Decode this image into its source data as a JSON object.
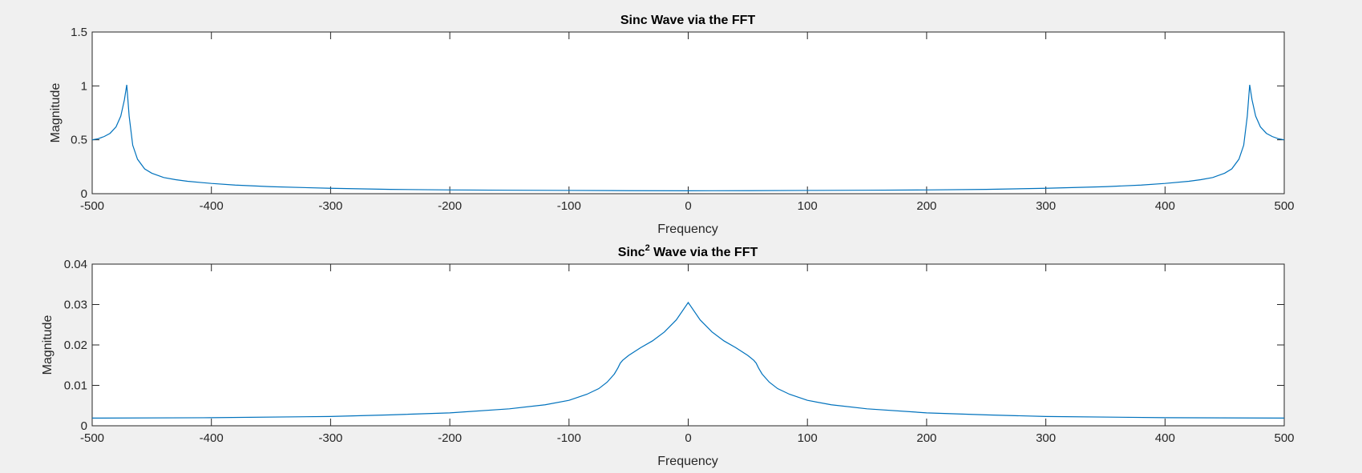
{
  "chart_data": [
    {
      "type": "line",
      "title": "Sinc Wave via the FFT",
      "xlabel": "Frequency",
      "ylabel": "Magnitude",
      "xlim": [
        -500,
        500
      ],
      "ylim": [
        0,
        1.5
      ],
      "xticks": [
        "-500",
        "-400",
        "-300",
        "-200",
        "-100",
        "0",
        "100",
        "200",
        "300",
        "400",
        "500"
      ],
      "yticks": [
        "0",
        "0.5",
        "1",
        "1.5"
      ],
      "grid": false,
      "line_color": "#0072bd",
      "series": [
        {
          "x": [
            -500,
            -495,
            -490,
            -485,
            -480,
            -476,
            -473,
            -471,
            -469,
            -466,
            -462,
            -456,
            -450,
            -440,
            -430,
            -420,
            -400,
            -380,
            -350,
            -300,
            -250,
            -200,
            -150,
            -100,
            -50,
            0,
            50,
            100,
            150,
            200,
            250,
            300,
            350,
            380,
            400,
            420,
            430,
            440,
            450,
            456,
            462,
            466,
            469,
            471,
            473,
            476,
            480,
            485,
            490,
            495,
            500
          ],
          "y": [
            0.5,
            0.51,
            0.53,
            0.56,
            0.62,
            0.72,
            0.87,
            1.01,
            0.72,
            0.45,
            0.32,
            0.23,
            0.19,
            0.15,
            0.13,
            0.115,
            0.095,
            0.08,
            0.065,
            0.05,
            0.04,
            0.035,
            0.032,
            0.03,
            0.028,
            0.027,
            0.028,
            0.03,
            0.032,
            0.035,
            0.04,
            0.05,
            0.065,
            0.08,
            0.095,
            0.115,
            0.13,
            0.15,
            0.19,
            0.23,
            0.32,
            0.45,
            0.72,
            1.01,
            0.87,
            0.72,
            0.62,
            0.56,
            0.53,
            0.51,
            0.5
          ]
        }
      ]
    },
    {
      "type": "line",
      "title": "Sinc",
      "title_sup": "2",
      "title_rest": " Wave via the FFT",
      "xlabel": "Frequency",
      "ylabel": "Magnitude",
      "xlim": [
        -500,
        500
      ],
      "ylim": [
        0,
        0.04
      ],
      "xticks": [
        "-500",
        "-400",
        "-300",
        "-200",
        "-100",
        "0",
        "100",
        "200",
        "300",
        "400",
        "500"
      ],
      "yticks": [
        "0",
        "0.01",
        "0.02",
        "0.03",
        "0.04"
      ],
      "grid": false,
      "line_color": "#0072bd",
      "series": [
        {
          "x": [
            -500,
            -400,
            -300,
            -250,
            -200,
            -150,
            -120,
            -100,
            -85,
            -75,
            -68,
            -62,
            -59,
            -57,
            -55,
            -50,
            -40,
            -30,
            -20,
            -10,
            0,
            10,
            20,
            30,
            40,
            50,
            55,
            57,
            59,
            62,
            68,
            75,
            85,
            100,
            120,
            150,
            200,
            250,
            300,
            400,
            500
          ],
          "y": [
            0.0019,
            0.002,
            0.0023,
            0.0027,
            0.0032,
            0.0042,
            0.0052,
            0.0063,
            0.0078,
            0.0092,
            0.0108,
            0.0128,
            0.0143,
            0.0155,
            0.0162,
            0.0174,
            0.0193,
            0.021,
            0.0232,
            0.0262,
            0.0305,
            0.0262,
            0.0232,
            0.021,
            0.0193,
            0.0174,
            0.0162,
            0.0155,
            0.0143,
            0.0128,
            0.0108,
            0.0092,
            0.0078,
            0.0063,
            0.0052,
            0.0042,
            0.0032,
            0.0027,
            0.0023,
            0.002,
            0.0019
          ]
        }
      ]
    }
  ]
}
